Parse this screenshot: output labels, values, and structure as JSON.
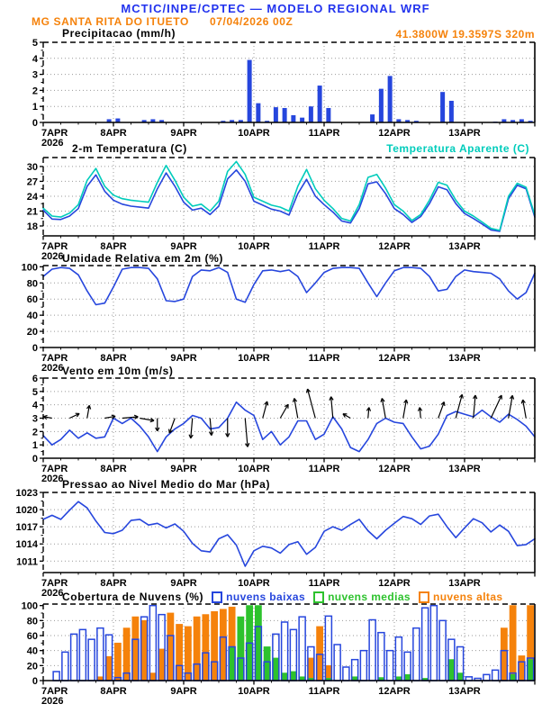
{
  "header": {
    "title": "MCTIC/INPE/CPTEC — MODELO REGIONAL WRF",
    "station": "MG SANTA RITA DO ITUETO",
    "run": "07/04/2026 00Z",
    "location": "41.3800W 19.3597S 320m"
  },
  "colors": {
    "title_blue": "#2233ee",
    "orange": "#f5820b",
    "line_blue": "#2646dd",
    "cyan": "#00ccbb",
    "green": "#2dc22d",
    "grid": "#999999",
    "black": "#000000"
  },
  "axis": {
    "x_labels": [
      "7APR",
      "8APR",
      "9APR",
      "10APR",
      "11APR",
      "12APR",
      "13APR"
    ],
    "year": "2026",
    "x_start": 7,
    "x_end": 14
  },
  "chart_data": [
    {
      "id": "precipitation",
      "type": "bar",
      "title": "Precipitacao (mm/h)",
      "ylim": [
        0,
        5
      ],
      "yticks": [
        0,
        1,
        2,
        3,
        4,
        5
      ],
      "x_step_days": 0.125,
      "values": [
        0,
        0,
        0,
        0,
        0,
        0,
        0,
        0.2,
        0.25,
        0,
        0,
        0.15,
        0.2,
        0.15,
        0,
        0,
        0,
        0,
        0,
        0,
        0.1,
        0.15,
        0.15,
        3.9,
        1.2,
        0.1,
        0.95,
        0.9,
        0.45,
        0.3,
        1.0,
        2.3,
        0.9,
        0,
        0,
        0,
        0,
        0.5,
        2.1,
        2.9,
        0.2,
        0.15,
        0.1,
        0,
        0,
        1.9,
        1.35,
        0,
        0,
        0,
        0,
        0.05,
        0.2,
        0.15,
        0.2,
        0.1
      ]
    },
    {
      "id": "temperature",
      "type": "line",
      "title": "2-m Temperatura (C)",
      "title_right": "Temperatura Aparente (C)",
      "ylim": [
        16,
        31.8
      ],
      "yticks": [
        18,
        21,
        24,
        27,
        30
      ],
      "x_step_days": 0.125,
      "series": [
        {
          "name": "2-m Temperatura (C)",
          "color_key": "line_blue",
          "values": [
            21.2,
            19.4,
            19.3,
            20.0,
            21.5,
            26.0,
            28.3,
            25.0,
            23.2,
            22.4,
            22.0,
            21.8,
            21.6,
            25.5,
            28.7,
            26.0,
            22.8,
            21.2,
            21.6,
            20.3,
            22.0,
            27.5,
            29.3,
            27.0,
            23.0,
            22.2,
            21.4,
            21.0,
            20.2,
            24.5,
            27.4,
            24.0,
            22.3,
            20.8,
            19.0,
            18.6,
            21.5,
            26.5,
            26.9,
            24.5,
            21.5,
            20.3,
            18.7,
            19.9,
            22.5,
            25.9,
            25.3,
            22.5,
            20.5,
            19.5,
            18.4,
            17.2,
            16.9,
            23.5,
            26.2,
            25.5,
            19.8
          ]
        },
        {
          "name": "Temperatura Aparente (C)",
          "color_key": "cyan",
          "values": [
            21.6,
            20.0,
            19.8,
            20.6,
            22.3,
            27.2,
            29.6,
            26.0,
            24.2,
            23.5,
            23.2,
            23.0,
            22.8,
            26.8,
            30.2,
            27.2,
            23.8,
            22.0,
            22.4,
            21.0,
            23.0,
            29.0,
            31.0,
            28.4,
            23.8,
            23.0,
            22.2,
            21.8,
            21.0,
            26.0,
            29.4,
            25.5,
            23.2,
            21.5,
            19.5,
            19.0,
            22.3,
            27.8,
            28.4,
            25.6,
            22.3,
            21.0,
            19.1,
            20.3,
            23.2,
            26.8,
            26.2,
            23.2,
            21.0,
            20.0,
            18.8,
            17.5,
            17.1,
            24.0,
            26.6,
            25.8,
            20.2
          ]
        }
      ]
    },
    {
      "id": "relative-humidity",
      "type": "line",
      "title": "Umidade Relativa em 2m (%)",
      "ylim": [
        0,
        101.5
      ],
      "yticks": [
        0,
        20,
        40,
        60,
        80,
        100
      ],
      "x_step_days": 0.125,
      "series": [
        {
          "name": "Umidade Relativa",
          "color_key": "line_blue",
          "values": [
            88,
            97,
            99,
            98,
            90,
            70,
            53,
            55,
            75,
            97,
            99,
            99,
            98,
            85,
            58,
            57,
            60,
            88,
            96,
            95,
            99,
            93,
            60,
            56,
            78,
            95,
            96,
            94,
            96,
            88,
            68,
            80,
            93,
            98,
            99,
            99,
            98,
            80,
            63,
            80,
            95,
            99,
            99,
            98,
            88,
            70,
            72,
            88,
            96,
            94,
            93,
            92,
            85,
            70,
            60,
            68,
            92
          ]
        }
      ]
    },
    {
      "id": "wind-10m",
      "type": "line",
      "title": "Vento em 10m (m/s)",
      "ylim": [
        0,
        6
      ],
      "yticks": [
        0,
        1,
        2,
        3,
        4,
        5,
        6
      ],
      "x_step_days": 0.125,
      "series": [
        {
          "name": "Velocidade do vento",
          "color_key": "line_blue",
          "values": [
            1.7,
            1.0,
            1.4,
            2.1,
            1.5,
            1.9,
            1.5,
            1.6,
            3.0,
            2.6,
            3.0,
            2.4,
            1.6,
            0.5,
            1.6,
            2.2,
            2.6,
            3.2,
            3.0,
            2.2,
            2.3,
            3.0,
            4.2,
            3.6,
            3.2,
            1.4,
            2.0,
            1.0,
            1.6,
            2.8,
            2.8,
            1.4,
            1.8,
            3.1,
            2.2,
            0.8,
            0.5,
            1.4,
            2.6,
            3.0,
            2.7,
            2.6,
            1.6,
            0.7,
            0.9,
            1.8,
            3.2,
            3.5,
            3.3,
            3.1,
            3.6,
            3.1,
            2.7,
            3.3,
            2.9,
            2.4,
            1.6
          ]
        }
      ],
      "arrows_anchor_value": 3,
      "arrows": [
        [
          7.125,
          170,
          1.2
        ],
        [
          7.375,
          25,
          1.5
        ],
        [
          7.625,
          80,
          1.8
        ],
        [
          7.875,
          10,
          1.5
        ],
        [
          8.125,
          5,
          2.2
        ],
        [
          8.375,
          350,
          2.0
        ],
        [
          8.625,
          270,
          1.8
        ],
        [
          8.875,
          250,
          2.2
        ],
        [
          9.125,
          265,
          2.8
        ],
        [
          9.375,
          275,
          2.4
        ],
        [
          9.625,
          270,
          2.6
        ],
        [
          9.875,
          275,
          4.0
        ],
        [
          10.125,
          75,
          2.4
        ],
        [
          10.375,
          60,
          2.2
        ],
        [
          10.625,
          100,
          2.8
        ],
        [
          10.875,
          105,
          4.2
        ],
        [
          11.125,
          95,
          3.0
        ],
        [
          11.375,
          150,
          1.2
        ],
        [
          11.625,
          85,
          1.5
        ],
        [
          11.875,
          100,
          2.8
        ],
        [
          12.125,
          80,
          2.6
        ],
        [
          12.375,
          95,
          1.5
        ],
        [
          12.625,
          70,
          2.4
        ],
        [
          12.875,
          75,
          3.4
        ],
        [
          13.125,
          85,
          3.2
        ],
        [
          13.375,
          65,
          3.5
        ],
        [
          13.625,
          80,
          3.2
        ],
        [
          13.875,
          100,
          2.6
        ]
      ]
    },
    {
      "id": "mslp",
      "type": "line",
      "title": "Pressao ao Nivel Medio do Mar (hPa)",
      "ylim": [
        1009,
        1023
      ],
      "yticks": [
        1011,
        1014,
        1017,
        1020,
        1023
      ],
      "x_step_days": 0.125,
      "series": [
        {
          "name": "Pressao",
          "color_key": "line_blue",
          "values": [
            1018.3,
            1019.0,
            1018.3,
            1019.9,
            1021.4,
            1020.3,
            1018.0,
            1016.0,
            1015.8,
            1016.4,
            1018.1,
            1018.3,
            1017.3,
            1017.6,
            1016.8,
            1017.5,
            1016.2,
            1014.1,
            1012.8,
            1012.6,
            1014.9,
            1015.6,
            1013.8,
            1010.1,
            1012.8,
            1013.6,
            1013.3,
            1012.4,
            1013.9,
            1014.4,
            1012.2,
            1013.4,
            1016.2,
            1017.0,
            1016.4,
            1017.4,
            1018.3,
            1016.3,
            1014.9,
            1016.4,
            1017.6,
            1018.8,
            1018.4,
            1017.4,
            1018.9,
            1019.2,
            1017.0,
            1015.1,
            1016.8,
            1018.4,
            1017.7,
            1016.1,
            1017.3,
            1016.2,
            1013.7,
            1013.9,
            1014.9
          ]
        }
      ]
    },
    {
      "id": "cloud-cover",
      "type": "bar",
      "title": "Cobertura de Nuvens (%)",
      "ylim": [
        0,
        102
      ],
      "yticks": [
        0,
        20,
        40,
        60,
        80,
        100
      ],
      "x_step_days": 0.125,
      "legend": [
        {
          "label": "nuvens baixas",
          "color_key": "line_blue"
        },
        {
          "label": "nuvens medias",
          "color_key": "green"
        },
        {
          "label": "nuvens altas",
          "color_key": "orange"
        }
      ],
      "series": [
        {
          "name": "nuvens baixas",
          "style": "hollow",
          "color_key": "line_blue",
          "values": [
            0,
            12,
            38,
            62,
            68,
            55,
            70,
            61,
            4,
            10,
            55,
            85,
            100,
            88,
            60,
            20,
            10,
            22,
            37,
            25,
            58,
            45,
            30,
            50,
            72,
            25,
            62,
            78,
            68,
            85,
            45,
            35,
            86,
            48,
            18,
            28,
            40,
            81,
            64,
            40,
            58,
            38,
            70,
            97,
            100,
            80,
            55,
            45,
            5,
            3,
            8,
            14,
            40,
            10,
            25,
            30
          ]
        },
        {
          "name": "nuvens medias",
          "style": "solid",
          "color_key": "green",
          "values": [
            0,
            0,
            0,
            0,
            0,
            0,
            0,
            0,
            0,
            0,
            0,
            0,
            0,
            0,
            0,
            0,
            0,
            0,
            0,
            0,
            0,
            45,
            85,
            100,
            100,
            45,
            30,
            10,
            12,
            5,
            3,
            0,
            3,
            0,
            0,
            5,
            0,
            0,
            4,
            0,
            5,
            8,
            0,
            3,
            0,
            0,
            28,
            10,
            0,
            0,
            0,
            0,
            0,
            8,
            0,
            28
          ]
        },
        {
          "name": "nuvens altas",
          "style": "solid",
          "color_key": "orange",
          "values": [
            0,
            0,
            0,
            0,
            0,
            0,
            5,
            32,
            50,
            70,
            85,
            80,
            10,
            42,
            90,
            75,
            72,
            85,
            88,
            92,
            95,
            98,
            60,
            25,
            0,
            0,
            0,
            0,
            0,
            0,
            30,
            72,
            20,
            0,
            0,
            0,
            0,
            0,
            0,
            0,
            0,
            0,
            0,
            0,
            0,
            0,
            0,
            0,
            0,
            0,
            0,
            0,
            70,
            100,
            33,
            100
          ]
        }
      ]
    }
  ]
}
